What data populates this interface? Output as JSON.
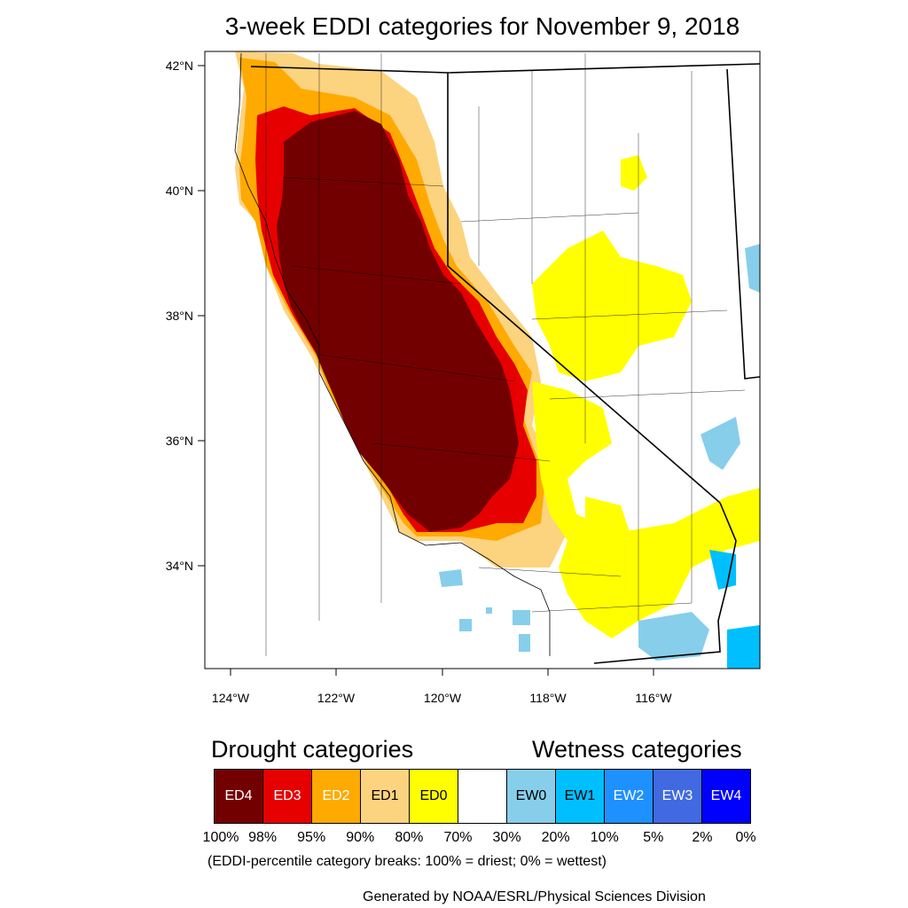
{
  "title": "3-week EDDI categories for November 9, 2018",
  "map": {
    "lat_labels": [
      "42°N",
      "40°N",
      "38°N",
      "36°N",
      "34°N"
    ],
    "lon_labels": [
      "124°W",
      "122°W",
      "120°W",
      "118°W",
      "116°W"
    ]
  },
  "legend": {
    "drought_heading": "Drought categories",
    "wetness_heading": "Wetness categories",
    "categories": [
      {
        "label": "ED4",
        "color": "#730000",
        "text_color": "#ffffff"
      },
      {
        "label": "ED3",
        "color": "#e60000",
        "text_color": "#ffffff"
      },
      {
        "label": "ED2",
        "color": "#ffaa00",
        "text_color": "#ffffff"
      },
      {
        "label": "ED1",
        "color": "#fcd37f",
        "text_color": "#000000"
      },
      {
        "label": "ED0",
        "color": "#ffff00",
        "text_color": "#000000"
      },
      {
        "label": "",
        "color": "#ffffff",
        "text_color": "#000000"
      },
      {
        "label": "EW0",
        "color": "#87ceeb",
        "text_color": "#000000"
      },
      {
        "label": "EW1",
        "color": "#00bfff",
        "text_color": "#000000"
      },
      {
        "label": "EW2",
        "color": "#1e90ff",
        "text_color": "#ffffff"
      },
      {
        "label": "EW3",
        "color": "#4169e1",
        "text_color": "#ffffff"
      },
      {
        "label": "EW4",
        "color": "#0000ff",
        "text_color": "#ffffff"
      }
    ],
    "breaks": [
      "100%",
      "98%",
      "95%",
      "90%",
      "80%",
      "70%",
      "30%",
      "20%",
      "10%",
      "5%",
      "2%",
      "0%"
    ],
    "note": "(EDDI-percentile category breaks: 100% = driest; 0% = wettest)"
  },
  "credit": "Generated by NOAA/ESRL/Physical Sciences Division"
}
